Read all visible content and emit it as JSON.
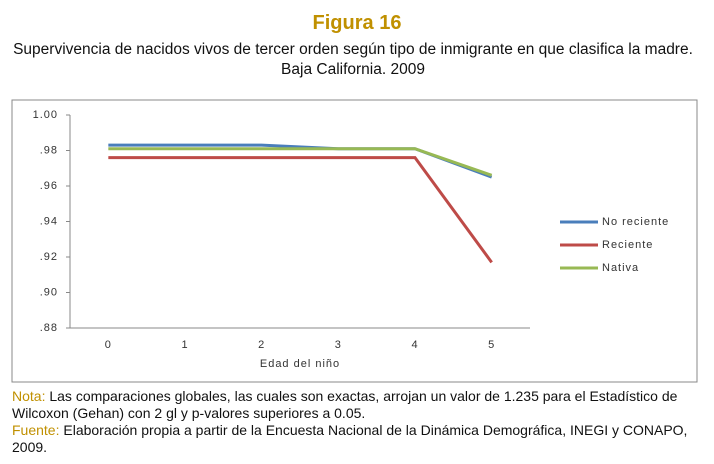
{
  "chart_data": {
    "type": "line",
    "title": "Figura 16",
    "subtitle": "Supervivencia de nacidos vivos de tercer orden según tipo de inmigrante en que clasifica la madre. Baja California. 2009",
    "x_label": "Edad del niño",
    "categories": [
      "0",
      "1",
      "2",
      "3",
      "4",
      "5"
    ],
    "series": [
      {
        "name": "No reciente",
        "color": "#4a7ebb",
        "values": [
          0.983,
          0.983,
          0.983,
          0.981,
          0.981,
          0.965
        ]
      },
      {
        "name": "Reciente",
        "color": "#be4b48",
        "values": [
          0.976,
          0.976,
          0.976,
          0.976,
          0.976,
          0.917
        ]
      },
      {
        "name": "Nativa",
        "color": "#98b954",
        "values": [
          0.981,
          0.981,
          0.981,
          0.981,
          0.981,
          0.966
        ]
      }
    ],
    "ylim": [
      0.88,
      1.0
    ],
    "yticks": [
      {
        "value": 1.0,
        "label": "1.00"
      },
      {
        "value": 0.98,
        "label": ".98"
      },
      {
        "value": 0.96,
        "label": ".96"
      },
      {
        "value": 0.94,
        "label": ".94"
      },
      {
        "value": 0.92,
        "label": ".92"
      },
      {
        "value": 0.9,
        "label": ".90"
      },
      {
        "value": 0.88,
        "label": ".88"
      }
    ],
    "legend": "right",
    "grid": false,
    "notes": [
      {
        "label": "Nota:",
        "text": "Las comparaciones globales, las cuales son exactas, arrojan un valor de  1.235 para el Estadístico de Wilcoxon (Gehan) con 2 gl y p-valores superiores a  0.05."
      },
      {
        "label": "Fuente:",
        "text": "Elaboración propia a partir de la Encuesta Nacional de la Dinámica Demográfica, INEGI y CONAPO, 2009."
      }
    ]
  }
}
